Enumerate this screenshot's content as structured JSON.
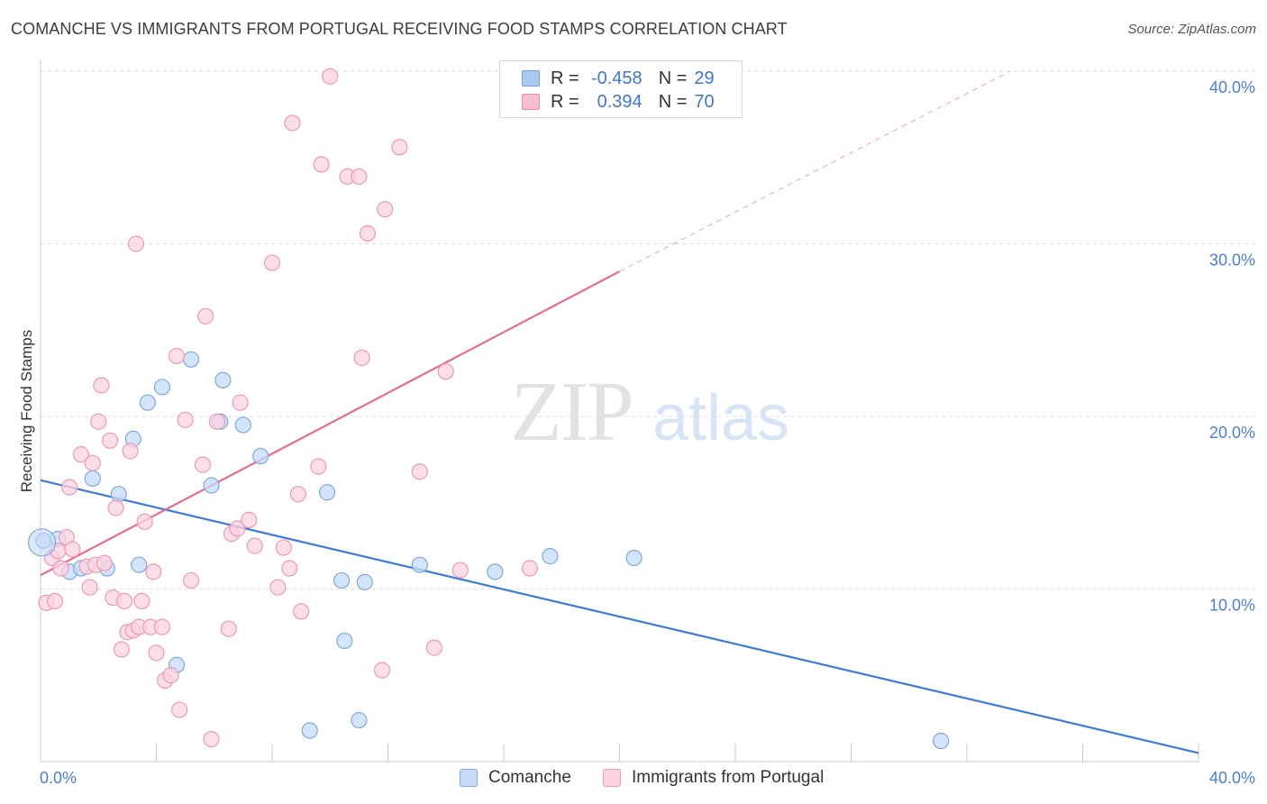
{
  "header": {
    "title": "COMANCHE VS IMMIGRANTS FROM PORTUGAL RECEIVING FOOD STAMPS CORRELATION CHART",
    "source": "Source: ZipAtlas.com"
  },
  "watermark": {
    "zip": "ZIP",
    "atlas": "atlas"
  },
  "stats": [
    {
      "r_label": "R =",
      "r_value": "-0.458",
      "n_label": "N =",
      "n_value": "29",
      "color": "#aac8f0",
      "border": "#6f9fdc"
    },
    {
      "r_label": "R =",
      "r_value": "0.394",
      "n_label": "N =",
      "n_value": "70",
      "color": "#f6bfd0",
      "border": "#e889a6"
    }
  ],
  "legend": [
    {
      "label": "Comanche",
      "color": "#c5dbf7",
      "border": "#7da9e0"
    },
    {
      "label": "Immigrants from Portugal",
      "color": "#fbd3e0",
      "border": "#ec9ab4"
    }
  ],
  "chart_data": {
    "type": "scatter",
    "title": "COMANCHE VS IMMIGRANTS FROM PORTUGAL RECEIVING FOOD STAMPS CORRELATION CHART",
    "xlabel": "",
    "ylabel": "Receiving Food Stamps",
    "xlim": [
      0,
      40
    ],
    "ylim": [
      0,
      40
    ],
    "x_tick_labels": [
      "0.0%",
      "40.0%"
    ],
    "y_ticks": [
      10,
      20,
      30,
      40
    ],
    "y_tick_labels": [
      "10.0%",
      "20.0%",
      "30.0%",
      "40.0%"
    ],
    "grid": true,
    "legend_position": "bottom-center",
    "series": [
      {
        "name": "Comanche",
        "color": "#7da9e0",
        "fill": "#c5dbf7",
        "trend_color": "#3d7bd4",
        "trend": {
          "x": [
            0,
            40
          ],
          "y": [
            16.3,
            0.5
          ],
          "dashed_from": null
        },
        "points": [
          [
            0.1,
            12.8
          ],
          [
            0.6,
            12.9
          ],
          [
            1.0,
            11.0
          ],
          [
            1.4,
            11.2
          ],
          [
            1.8,
            16.4
          ],
          [
            2.3,
            11.2
          ],
          [
            2.7,
            15.5
          ],
          [
            3.2,
            18.7
          ],
          [
            3.4,
            11.4
          ],
          [
            3.7,
            20.8
          ],
          [
            4.2,
            21.7
          ],
          [
            4.7,
            5.6
          ],
          [
            5.2,
            23.3
          ],
          [
            5.9,
            16.0
          ],
          [
            6.2,
            19.7
          ],
          [
            6.3,
            22.1
          ],
          [
            7.0,
            19.5
          ],
          [
            7.6,
            17.7
          ],
          [
            9.3,
            1.8
          ],
          [
            9.9,
            15.6
          ],
          [
            10.4,
            10.5
          ],
          [
            10.5,
            7.0
          ],
          [
            11.0,
            2.4
          ],
          [
            11.2,
            10.4
          ],
          [
            13.1,
            11.4
          ],
          [
            15.7,
            11.0
          ],
          [
            17.6,
            11.9
          ],
          [
            20.5,
            11.8
          ],
          [
            31.1,
            1.2
          ]
        ]
      },
      {
        "name": "Immigrants from Portugal",
        "color": "#ec9ab4",
        "fill": "#fbd3e0",
        "trend_color": "#e46d93",
        "trend": {
          "x": [
            0,
            20
          ],
          "y": [
            10.8,
            28.4
          ],
          "dashed_to": [
            33.5,
            40.0
          ]
        },
        "points": [
          [
            0.2,
            9.2
          ],
          [
            0.4,
            11.8
          ],
          [
            0.5,
            9.3
          ],
          [
            0.6,
            12.2
          ],
          [
            0.7,
            11.2
          ],
          [
            0.9,
            13.0
          ],
          [
            1.0,
            15.9
          ],
          [
            1.1,
            12.3
          ],
          [
            1.4,
            17.8
          ],
          [
            1.6,
            11.3
          ],
          [
            1.7,
            10.1
          ],
          [
            1.8,
            17.3
          ],
          [
            1.9,
            11.4
          ],
          [
            2.0,
            19.7
          ],
          [
            2.1,
            21.8
          ],
          [
            2.2,
            11.5
          ],
          [
            2.4,
            18.6
          ],
          [
            2.5,
            9.5
          ],
          [
            2.6,
            14.7
          ],
          [
            2.8,
            6.5
          ],
          [
            2.9,
            9.3
          ],
          [
            3.0,
            7.5
          ],
          [
            3.1,
            18.0
          ],
          [
            3.2,
            7.6
          ],
          [
            3.3,
            30.0
          ],
          [
            3.4,
            7.8
          ],
          [
            3.5,
            9.3
          ],
          [
            3.6,
            13.9
          ],
          [
            3.8,
            7.8
          ],
          [
            3.9,
            11.0
          ],
          [
            4.0,
            6.3
          ],
          [
            4.2,
            7.8
          ],
          [
            4.3,
            4.7
          ],
          [
            4.5,
            5.0
          ],
          [
            4.7,
            23.5
          ],
          [
            4.8,
            3.0
          ],
          [
            5.0,
            19.8
          ],
          [
            5.2,
            10.5
          ],
          [
            5.6,
            17.2
          ],
          [
            5.7,
            25.8
          ],
          [
            5.9,
            1.3
          ],
          [
            6.1,
            19.7
          ],
          [
            6.5,
            7.7
          ],
          [
            6.6,
            13.2
          ],
          [
            6.8,
            13.5
          ],
          [
            6.9,
            20.8
          ],
          [
            7.2,
            14.0
          ],
          [
            7.4,
            12.5
          ],
          [
            8.0,
            28.9
          ],
          [
            8.2,
            10.1
          ],
          [
            8.4,
            12.4
          ],
          [
            8.6,
            11.2
          ],
          [
            8.7,
            37.0
          ],
          [
            8.9,
            15.5
          ],
          [
            9.0,
            8.7
          ],
          [
            9.6,
            17.1
          ],
          [
            9.7,
            34.6
          ],
          [
            10.0,
            39.7
          ],
          [
            10.6,
            33.9
          ],
          [
            11.0,
            33.9
          ],
          [
            11.1,
            23.4
          ],
          [
            11.3,
            30.6
          ],
          [
            11.8,
            5.3
          ],
          [
            11.9,
            32.0
          ],
          [
            12.4,
            35.6
          ],
          [
            13.1,
            16.8
          ],
          [
            13.6,
            6.6
          ],
          [
            14.0,
            22.6
          ],
          [
            14.5,
            11.1
          ],
          [
            16.9,
            11.2
          ]
        ]
      }
    ]
  }
}
